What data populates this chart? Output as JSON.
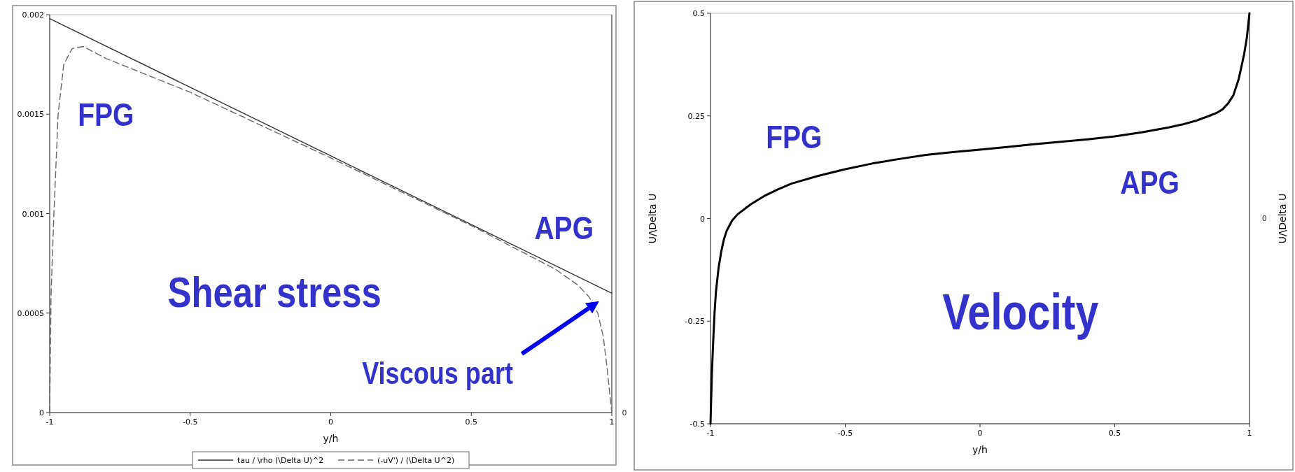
{
  "chart_data": [
    {
      "type": "line",
      "xlabel": "y/h",
      "xlim": [
        -1,
        1
      ],
      "xticks": [
        -1,
        -0.5,
        0,
        0.5,
        1
      ],
      "ylim": [
        0,
        0.002
      ],
      "yticks": [
        0,
        0.0005,
        0.001,
        0.0015,
        0.002
      ],
      "grid": false,
      "legend": "bottom",
      "annotations": [
        "FPG",
        "APG",
        "Shear stress",
        "Viscous part",
        "0"
      ],
      "series": [
        {
          "name": "tau / \\rho (\\Delta U)^2",
          "color": "#333333",
          "line_style": "solid",
          "x": [
            -1,
            -0.5,
            0,
            0.5,
            1
          ],
          "values": [
            0.00198,
            0.001635,
            0.00129,
            0.000945,
            0.0006
          ]
        },
        {
          "name": "(-uV') / (\\Delta U^2)",
          "color": "#666666",
          "line_style": "dashed",
          "x": [
            -1,
            -0.995,
            -0.985,
            -0.97,
            -0.95,
            -0.92,
            -0.88,
            -0.8,
            -0.5,
            0,
            0.5,
            0.8,
            0.88,
            0.92,
            0.95,
            0.97,
            0.985,
            1
          ],
          "values": [
            0,
            0.0006,
            0.001,
            0.0015,
            0.00175,
            0.00183,
            0.00184,
            0.00178,
            0.00161,
            0.00128,
            0.00094,
            0.00072,
            0.00064,
            0.00058,
            0.0005,
            0.00038,
            0.0002,
            0
          ]
        }
      ]
    },
    {
      "type": "line",
      "xlabel": "y/h",
      "ylabel": "U/\\Delta U",
      "y2label": "U/\\Delta U",
      "xlim": [
        -1,
        1
      ],
      "xticks": [
        -1,
        -0.5,
        0,
        0.5,
        1
      ],
      "ylim": [
        -0.5,
        0.5
      ],
      "yticks": [
        -0.5,
        -0.25,
        0,
        0.25,
        0.5
      ],
      "grid": false,
      "annotations": [
        "FPG",
        "APG",
        "Velocity",
        "0"
      ],
      "series": [
        {
          "color": "#000000",
          "line_style": "solid",
          "x": [
            -1,
            -0.995,
            -0.99,
            -0.985,
            -0.98,
            -0.97,
            -0.96,
            -0.95,
            -0.94,
            -0.92,
            -0.9,
            -0.85,
            -0.8,
            -0.75,
            -0.7,
            -0.6,
            -0.5,
            -0.4,
            -0.3,
            -0.2,
            -0.1,
            0,
            0.1,
            0.2,
            0.3,
            0.4,
            0.5,
            0.6,
            0.7,
            0.75,
            0.8,
            0.85,
            0.88,
            0.9,
            0.92,
            0.94,
            0.95,
            0.96,
            0.97,
            0.98,
            0.99,
            1
          ],
          "values": [
            -0.5,
            -0.38,
            -0.3,
            -0.23,
            -0.18,
            -0.12,
            -0.08,
            -0.05,
            -0.03,
            -0.005,
            0.01,
            0.035,
            0.055,
            0.071,
            0.085,
            0.104,
            0.12,
            0.134,
            0.145,
            0.155,
            0.162,
            0.168,
            0.174,
            0.181,
            0.187,
            0.193,
            0.2,
            0.21,
            0.222,
            0.229,
            0.238,
            0.25,
            0.258,
            0.266,
            0.28,
            0.3,
            0.32,
            0.34,
            0.37,
            0.4,
            0.44,
            0.5
          ]
        }
      ]
    }
  ]
}
